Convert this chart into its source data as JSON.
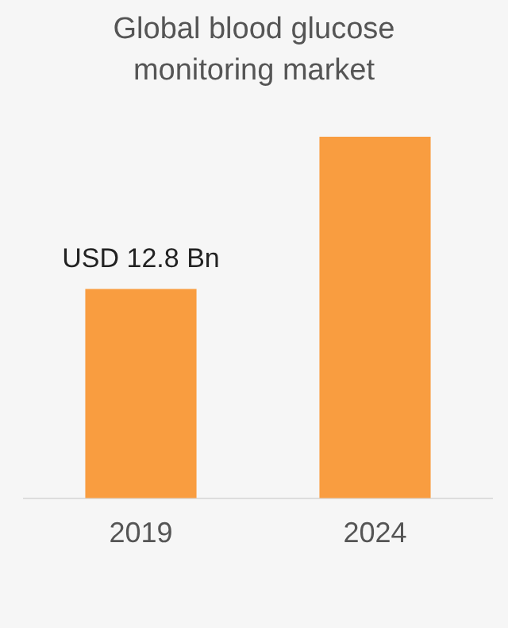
{
  "chart_data": {
    "type": "bar",
    "title": "Global blood glucose monitoring market",
    "categories": [
      "2019",
      "2024"
    ],
    "values": [
      12.8,
      22.1
    ],
    "color": "#f99d40",
    "value_labels": [
      "USD 12.8 Bn",
      null
    ],
    "grid": false,
    "legend": false
  }
}
